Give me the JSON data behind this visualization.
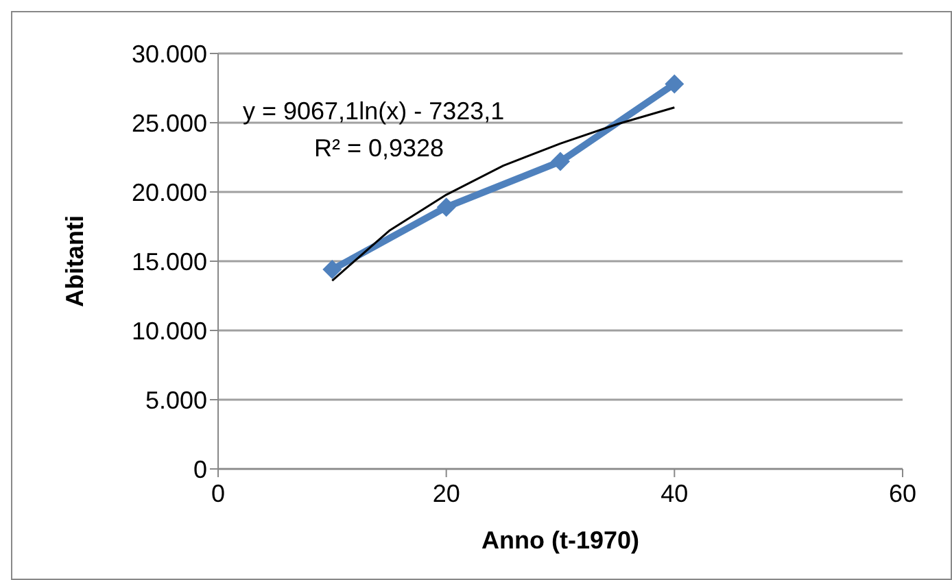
{
  "chart_data": {
    "type": "line",
    "xlabel": "Anno (t-1970)",
    "ylabel": "Abitanti",
    "annotations": [
      "y = 9067,1ln(x) - 7323,1",
      "R² = 0,9328"
    ],
    "series": [
      {
        "color": "#4f81bd",
        "x": [
          10,
          20,
          30,
          40
        ],
        "values": [
          14400,
          18900,
          22200,
          27800
        ],
        "marker": "diamond"
      },
      {
        "type": "line",
        "color": "#000000",
        "x": [
          10,
          15,
          20,
          25,
          30,
          35,
          40
        ],
        "values": [
          13600,
          17200,
          19800,
          21900,
          23500,
          24900,
          26100
        ],
        "marker": "none"
      }
    ],
    "xlim": [
      0,
      60
    ],
    "xticks": [
      0,
      20,
      40,
      60
    ],
    "ylim": [
      0,
      30000
    ],
    "yticks": [
      {
        "value": 0,
        "label": "0"
      },
      {
        "value": 5000,
        "label": "5.000"
      },
      {
        "value": 10000,
        "label": "10.000"
      },
      {
        "value": 15000,
        "label": "15.000"
      },
      {
        "value": 20000,
        "label": "20.000"
      },
      {
        "value": 25000,
        "label": "25.000"
      },
      {
        "value": 30000,
        "label": "30.000"
      }
    ],
    "grid": "y"
  }
}
